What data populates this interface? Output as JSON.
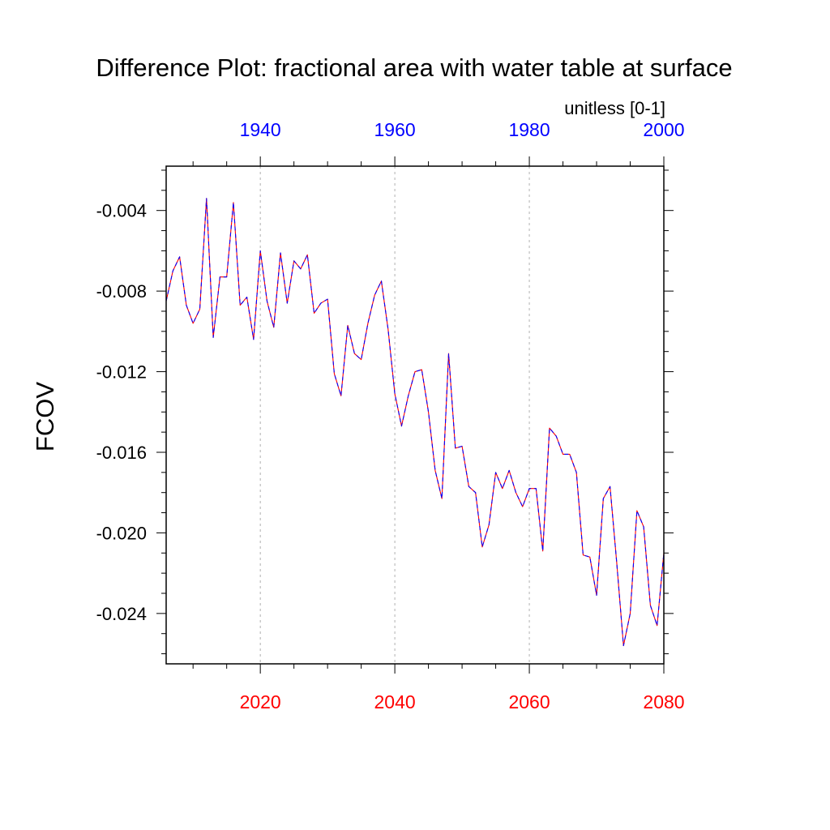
{
  "chart_data": {
    "type": "line",
    "title": "Difference Plot: fractional area with water table at surface",
    "units_label": "unitless [0-1]",
    "ylabel": "FCOV",
    "xlabel": "",
    "ylim": [
      -0.0265,
      -0.0018
    ],
    "y_ticks": [
      {
        "value": -0.004,
        "label": "-0.004"
      },
      {
        "value": -0.008,
        "label": "-0.008"
      },
      {
        "value": -0.012,
        "label": "-0.012"
      },
      {
        "value": -0.016,
        "label": "-0.016"
      },
      {
        "value": -0.02,
        "label": "-0.020"
      },
      {
        "value": -0.024,
        "label": "-0.024"
      }
    ],
    "x_bottom": {
      "range": [
        2006,
        2080
      ],
      "color": "#ff0000",
      "ticks": [
        {
          "value": 2020,
          "label": "2020"
        },
        {
          "value": 2040,
          "label": "2040"
        },
        {
          "value": 2060,
          "label": "2060"
        },
        {
          "value": 2080,
          "label": "2080"
        }
      ]
    },
    "x_top": {
      "range": [
        1926,
        2000
      ],
      "color": "#0000ff",
      "ticks": [
        {
          "value": 1940,
          "label": "1940"
        },
        {
          "value": 1960,
          "label": "1960"
        },
        {
          "value": 1980,
          "label": "1980"
        },
        {
          "value": 2000,
          "label": "2000"
        }
      ]
    },
    "grid": "vertical-dashed",
    "series": [
      {
        "name": "difference",
        "line_colors": [
          "#ff0000",
          "#0000ff"
        ],
        "style": "dashed",
        "x": [
          2006,
          2007,
          2008,
          2009,
          2010,
          2011,
          2012,
          2013,
          2014,
          2015,
          2016,
          2017,
          2018,
          2019,
          2020,
          2021,
          2022,
          2023,
          2024,
          2025,
          2026,
          2027,
          2028,
          2029,
          2030,
          2031,
          2032,
          2033,
          2034,
          2035,
          2036,
          2037,
          2038,
          2039,
          2040,
          2041,
          2042,
          2043,
          2044,
          2045,
          2046,
          2047,
          2048,
          2049,
          2050,
          2051,
          2052,
          2053,
          2054,
          2055,
          2056,
          2057,
          2058,
          2059,
          2060,
          2061,
          2062,
          2063,
          2064,
          2065,
          2066,
          2067,
          2068,
          2069,
          2070,
          2071,
          2072,
          2073,
          2074,
          2075,
          2076,
          2077,
          2078,
          2079,
          2080
        ],
        "values": [
          -0.0085,
          -0.007,
          -0.0063,
          -0.0087,
          -0.0096,
          -0.0089,
          -0.0034,
          -0.0103,
          -0.0073,
          -0.0073,
          -0.0036,
          -0.0087,
          -0.0083,
          -0.0104,
          -0.006,
          -0.0085,
          -0.0098,
          -0.0061,
          -0.0086,
          -0.0065,
          -0.0069,
          -0.0062,
          -0.0091,
          -0.0086,
          -0.0084,
          -0.0121,
          -0.0132,
          -0.0097,
          -0.0111,
          -0.0114,
          -0.0096,
          -0.0082,
          -0.0075,
          -0.0099,
          -0.0131,
          -0.0147,
          -0.0132,
          -0.012,
          -0.0119,
          -0.014,
          -0.0169,
          -0.0183,
          -0.0111,
          -0.0158,
          -0.0157,
          -0.0177,
          -0.018,
          -0.0207,
          -0.0196,
          -0.017,
          -0.0178,
          -0.0169,
          -0.018,
          -0.0187,
          -0.0178,
          -0.0178,
          -0.0209,
          -0.0148,
          -0.0152,
          -0.0161,
          -0.0161,
          -0.017,
          -0.0211,
          -0.0212,
          -0.0231,
          -0.0183,
          -0.0177,
          -0.0215,
          -0.0256,
          -0.024,
          -0.0189,
          -0.0197,
          -0.0236,
          -0.0246,
          -0.021
        ]
      }
    ]
  }
}
